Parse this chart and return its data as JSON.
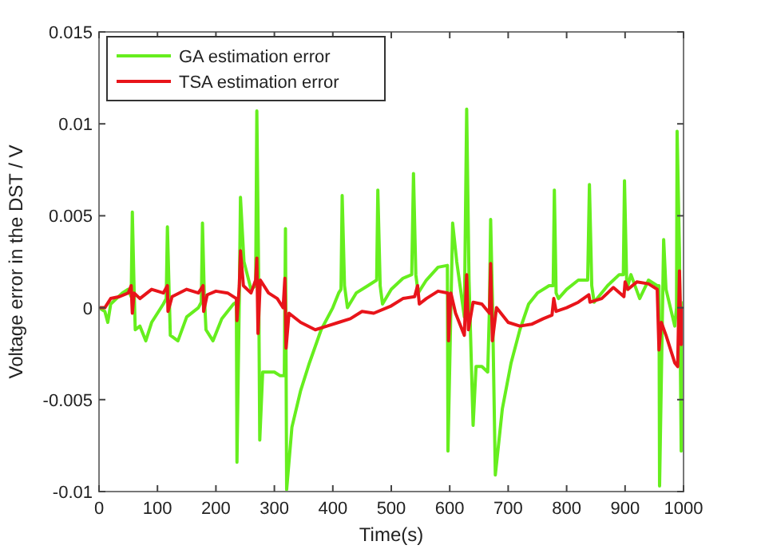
{
  "chart_data": {
    "type": "line",
    "xlabel": "Time(s)",
    "ylabel": "Voltage error in the DST / V",
    "xlim": [
      0,
      1000
    ],
    "ylim": [
      -0.01,
      0.015
    ],
    "xticks": [
      0,
      100,
      200,
      300,
      400,
      500,
      600,
      700,
      800,
      900,
      1000
    ],
    "yticks": [
      -0.01,
      -0.005,
      0,
      0.005,
      0.01,
      0.015
    ],
    "legend": "top left",
    "grid": false,
    "line_style": "solid",
    "marker": "none",
    "series": [
      {
        "name": "GA estimation error",
        "color": "#66ee1e",
        "x": [
          0,
          10,
          15,
          20,
          40,
          50,
          55,
          57,
          60,
          62,
          70,
          80,
          90,
          110,
          115,
          117,
          120,
          122,
          135,
          150,
          170,
          175,
          177,
          180,
          183,
          195,
          210,
          230,
          235,
          236,
          240,
          242,
          248,
          260,
          268,
          270,
          273,
          275,
          280,
          300,
          310,
          317,
          319,
          321,
          330,
          345,
          360,
          380,
          400,
          410,
          414,
          416,
          420,
          425,
          440,
          460,
          475,
          477,
          481,
          485,
          500,
          520,
          535,
          538,
          542,
          546,
          560,
          580,
          596,
          597,
          602,
          605,
          612,
          625,
          629,
          633,
          640,
          645,
          655,
          665,
          668,
          670,
          673,
          678,
          690,
          705,
          720,
          735,
          750,
          770,
          777,
          779,
          782,
          786,
          800,
          820,
          836,
          839,
          843,
          847,
          870,
          890,
          897,
          899,
          903,
          910,
          925,
          940,
          955,
          958,
          959,
          963,
          966,
          970,
          985,
          988,
          989,
          993,
          996,
          1000
        ],
        "values": [
          0,
          -0.0002,
          -0.0008,
          0.0002,
          0.0008,
          0.001,
          0.0006,
          0.0052,
          0.001,
          -0.0012,
          -0.001,
          -0.0018,
          -0.0008,
          0.0002,
          0.0005,
          0.0044,
          0.0008,
          -0.0015,
          -0.0018,
          -0.0005,
          0,
          0.0003,
          0.0046,
          0.0008,
          -0.0012,
          -0.0018,
          -0.0006,
          0.0002,
          0.0003,
          -0.0084,
          0.0005,
          0.006,
          0.0025,
          0.001,
          0.0012,
          0.0107,
          0.002,
          -0.0072,
          -0.0035,
          -0.0035,
          -0.0037,
          -0.0037,
          0.0043,
          -0.0099,
          -0.0065,
          -0.0045,
          -0.003,
          -0.0012,
          0,
          0.0008,
          0.001,
          0.0061,
          0.0012,
          0,
          0.0008,
          0.0012,
          0.0015,
          0.0064,
          0.0012,
          0.0002,
          0.001,
          0.0016,
          0.0018,
          0.0073,
          0.0018,
          0.0008,
          0.0015,
          0.0022,
          0.0023,
          -0.0078,
          0,
          0.0046,
          0.0025,
          -0.0005,
          0.0108,
          0.0015,
          -0.0064,
          -0.0032,
          -0.0032,
          -0.0035,
          0,
          0.0048,
          0.0005,
          -0.0091,
          -0.0055,
          -0.003,
          -0.0012,
          0.0002,
          0.0008,
          0.0012,
          0.0012,
          0.0064,
          0.0008,
          0.0005,
          0.001,
          0.0015,
          0.0015,
          0.0067,
          0.0012,
          0.0003,
          0.0012,
          0.0018,
          0.0018,
          0.0069,
          0.001,
          0.0018,
          0.0005,
          0.0015,
          0.0012,
          0.0012,
          -0.0097,
          -0.002,
          0.0037,
          0.001,
          -0.001,
          0,
          0.0096,
          0.003,
          -0.0078,
          0.0003
        ]
      },
      {
        "name": "TSA estimation error",
        "color": "#e8141a",
        "x": [
          0,
          10,
          20,
          35,
          50,
          55,
          57,
          60,
          70,
          90,
          110,
          117,
          118,
          125,
          150,
          170,
          178,
          179,
          185,
          200,
          220,
          235,
          236,
          240,
          242,
          247,
          260,
          268,
          270,
          272,
          276,
          290,
          305,
          315,
          318,
          320,
          325,
          345,
          370,
          390,
          410,
          430,
          450,
          470,
          500,
          520,
          540,
          545,
          548,
          560,
          580,
          597,
          598,
          602,
          610,
          625,
          629,
          632,
          640,
          655,
          668,
          670,
          673,
          680,
          700,
          720,
          740,
          760,
          775,
          778,
          782,
          800,
          820,
          838,
          840,
          860,
          880,
          898,
          900,
          905,
          920,
          940,
          955,
          958,
          962,
          970,
          985,
          990,
          993,
          996,
          1000
        ],
        "values": [
          0,
          0,
          0.0005,
          0.0006,
          0.0008,
          0.0012,
          -0.0003,
          0.0008,
          0.0005,
          0.001,
          0.0008,
          0.0012,
          -0.0002,
          0.0006,
          0.001,
          0.0008,
          0.0012,
          -0.0002,
          0.0007,
          0.0009,
          0.0008,
          0.0005,
          -0.0007,
          0.0012,
          0.0031,
          0.0012,
          0.0008,
          0.0015,
          0.0027,
          -0.0014,
          0.0015,
          0.0008,
          0.0005,
          0,
          0.0016,
          -0.0022,
          -0.0003,
          -0.0008,
          -0.0012,
          -0.001,
          -0.0008,
          -0.0006,
          -0.0002,
          -0.0003,
          0.0001,
          0.0005,
          0.0006,
          0.0012,
          0.0002,
          0.0005,
          0.0009,
          0.0008,
          -0.0018,
          0.0008,
          -0.0003,
          -0.0015,
          0.0018,
          -0.0012,
          0.0003,
          0.0002,
          -0.0003,
          0.0024,
          -0.0018,
          0,
          -0.0008,
          -0.001,
          -0.0009,
          -0.0006,
          -0.0004,
          0.0005,
          -0.0002,
          0,
          0.0003,
          0.0007,
          0.0003,
          0.0005,
          0.0011,
          0.0006,
          0.0014,
          0.001,
          0.0014,
          0.0013,
          0.001,
          -0.0023,
          -0.0008,
          -0.0015,
          -0.003,
          -0.0032,
          0.002,
          -0.002,
          0
        ]
      }
    ]
  }
}
